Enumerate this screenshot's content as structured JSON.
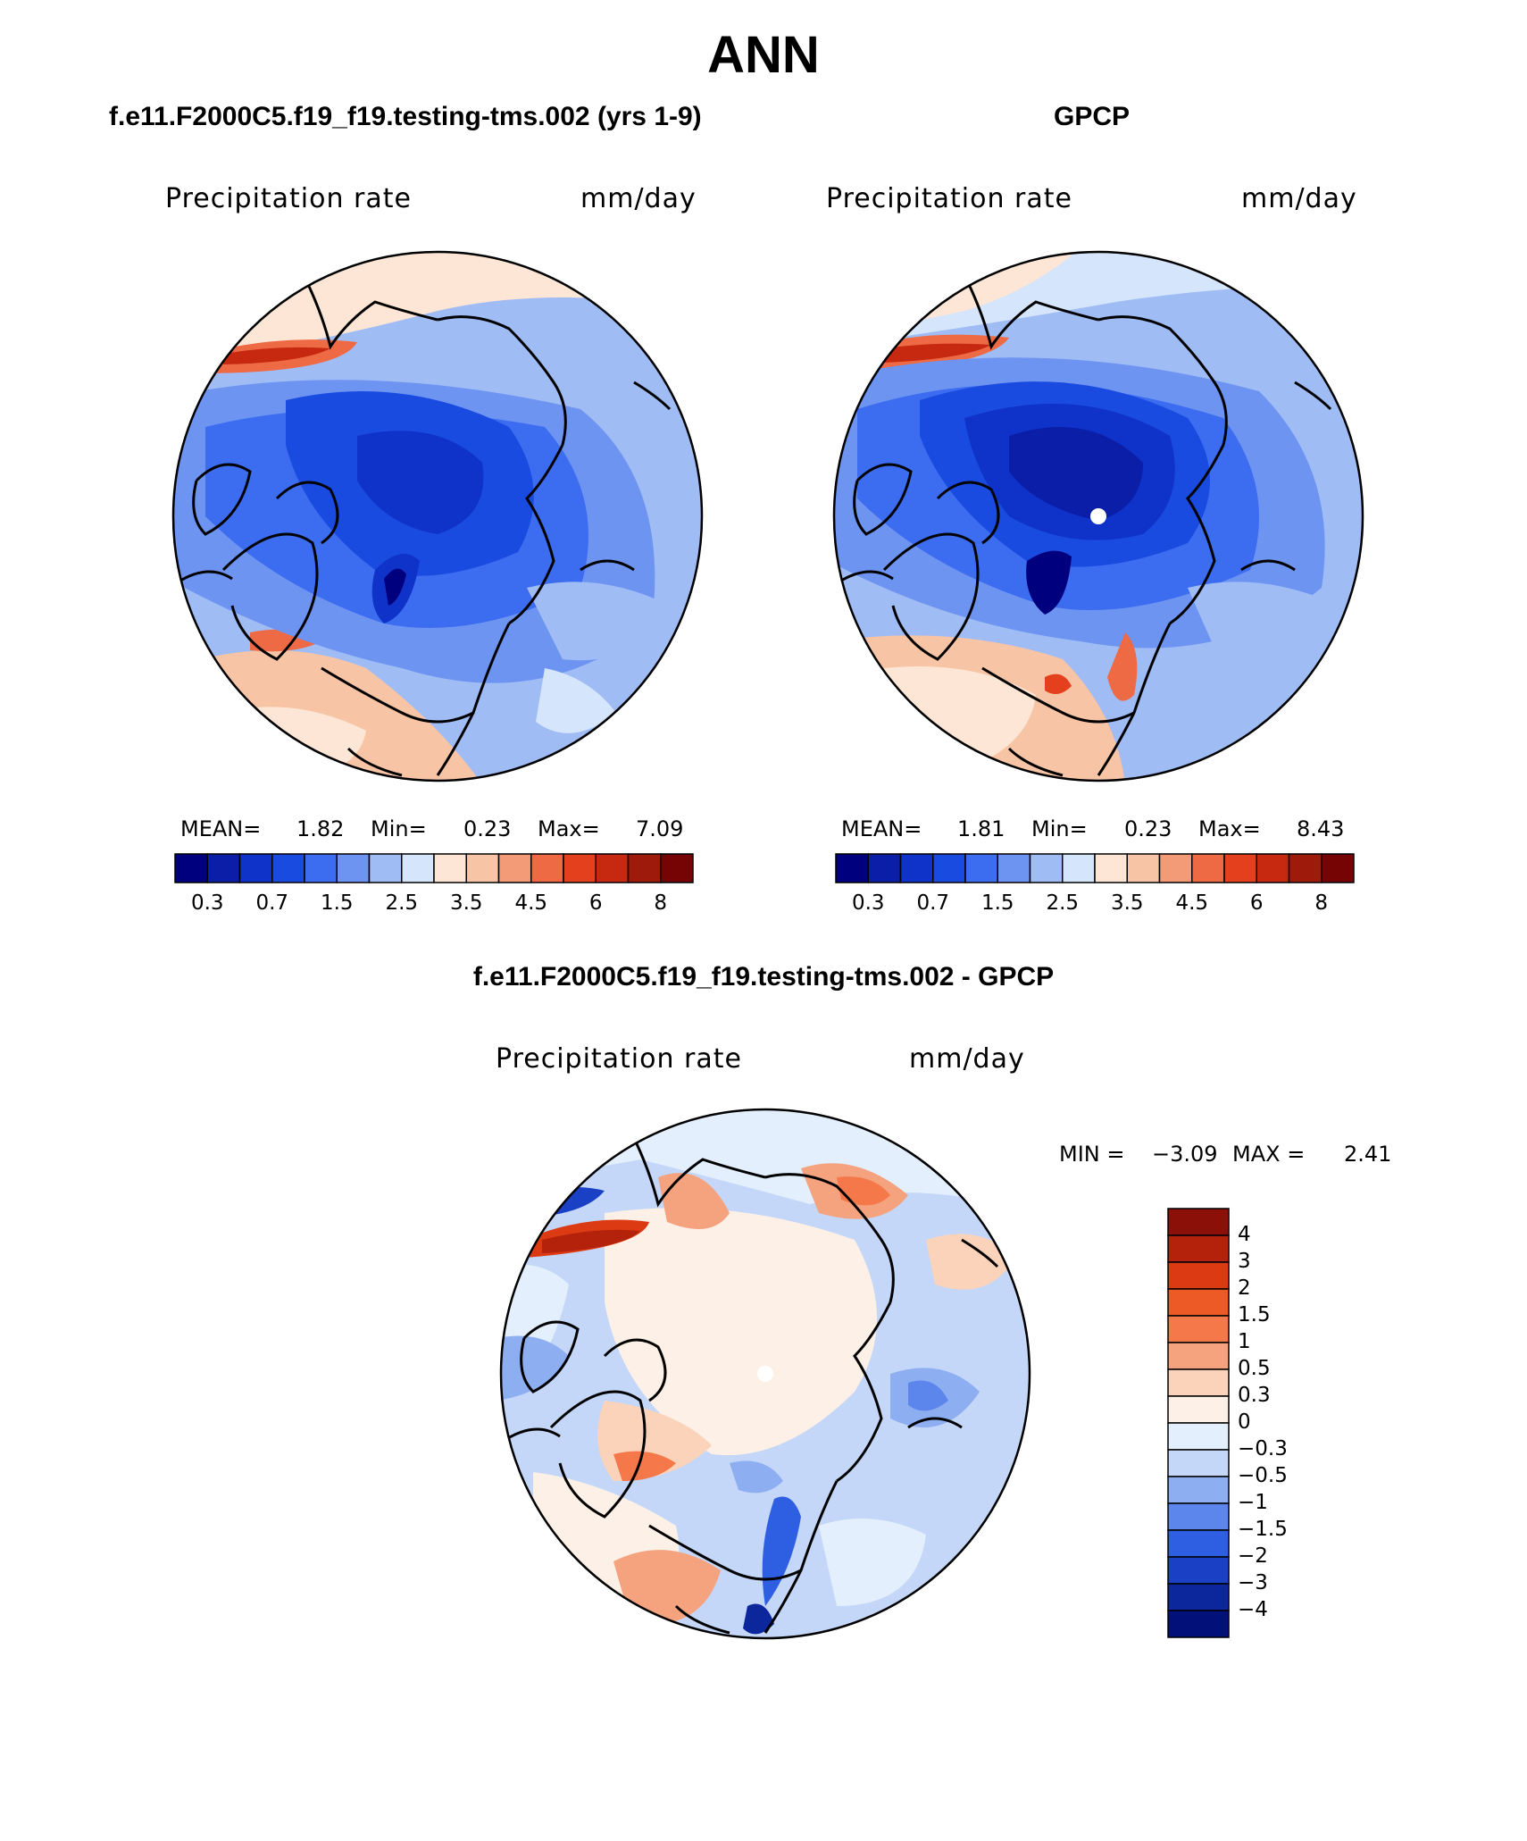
{
  "title": "ANN",
  "panels": [
    {
      "title": "f.e11.F2000C5.f19_f19.testing-tms.002 (yrs 1-9)",
      "variable": "Precipitation rate",
      "units": "mm/day",
      "stats": {
        "mean_label": "MEAN=",
        "mean": "1.82",
        "min_label": "Min=",
        "min": "0.23",
        "max_label": "Max=",
        "max": "7.09"
      },
      "tick_labels": [
        "0.3",
        "0.7",
        "1.5",
        "2.5",
        "3.5",
        "4.5",
        "6",
        "8"
      ]
    },
    {
      "title": "GPCP",
      "variable": "Precipitation rate",
      "units": "mm/day",
      "stats": {
        "mean_label": "MEAN=",
        "mean": "1.81",
        "min_label": "Min=",
        "min": "0.23",
        "max_label": "Max=",
        "max": "8.43"
      },
      "tick_labels": [
        "0.3",
        "0.7",
        "1.5",
        "2.5",
        "3.5",
        "4.5",
        "6",
        "8"
      ]
    }
  ],
  "diff_panel": {
    "title": "f.e11.F2000C5.f19_f19.testing-tms.002 - GPCP",
    "variable": "Precipitation rate",
    "units": "mm/day",
    "min_label": "MIN =",
    "min": "−3.09",
    "max_label": "MAX =",
    "max": "2.41",
    "tick_labels": [
      "4",
      "3",
      "2",
      "1.5",
      "1",
      "0.5",
      "0.3",
      "0",
      "−0.3",
      "−0.5",
      "−1",
      "−1.5",
      "−2",
      "−3",
      "−4"
    ]
  },
  "colors": {
    "abs_scale": [
      "#00007f",
      "#0a1ea8",
      "#0f32c8",
      "#1a4be0",
      "#3c6cf0",
      "#6e94f2",
      "#a0bcf5",
      "#d5e5fb",
      "#fde6d5",
      "#f8c4a6",
      "#f39a76",
      "#ee6a44",
      "#e4401e",
      "#c62810",
      "#9e1a0a",
      "#760404"
    ],
    "diff_scale": [
      "#8a1008",
      "#b4220c",
      "#dc3a12",
      "#ee5a26",
      "#f4784a",
      "#f5a27e",
      "#fbd3ba",
      "#fdf0e6",
      "#e3effc",
      "#c4d7f8",
      "#8eaef2",
      "#5c86ec",
      "#2e5ee2",
      "#1a40c6",
      "#0c269c",
      "#02107a"
    ]
  }
}
